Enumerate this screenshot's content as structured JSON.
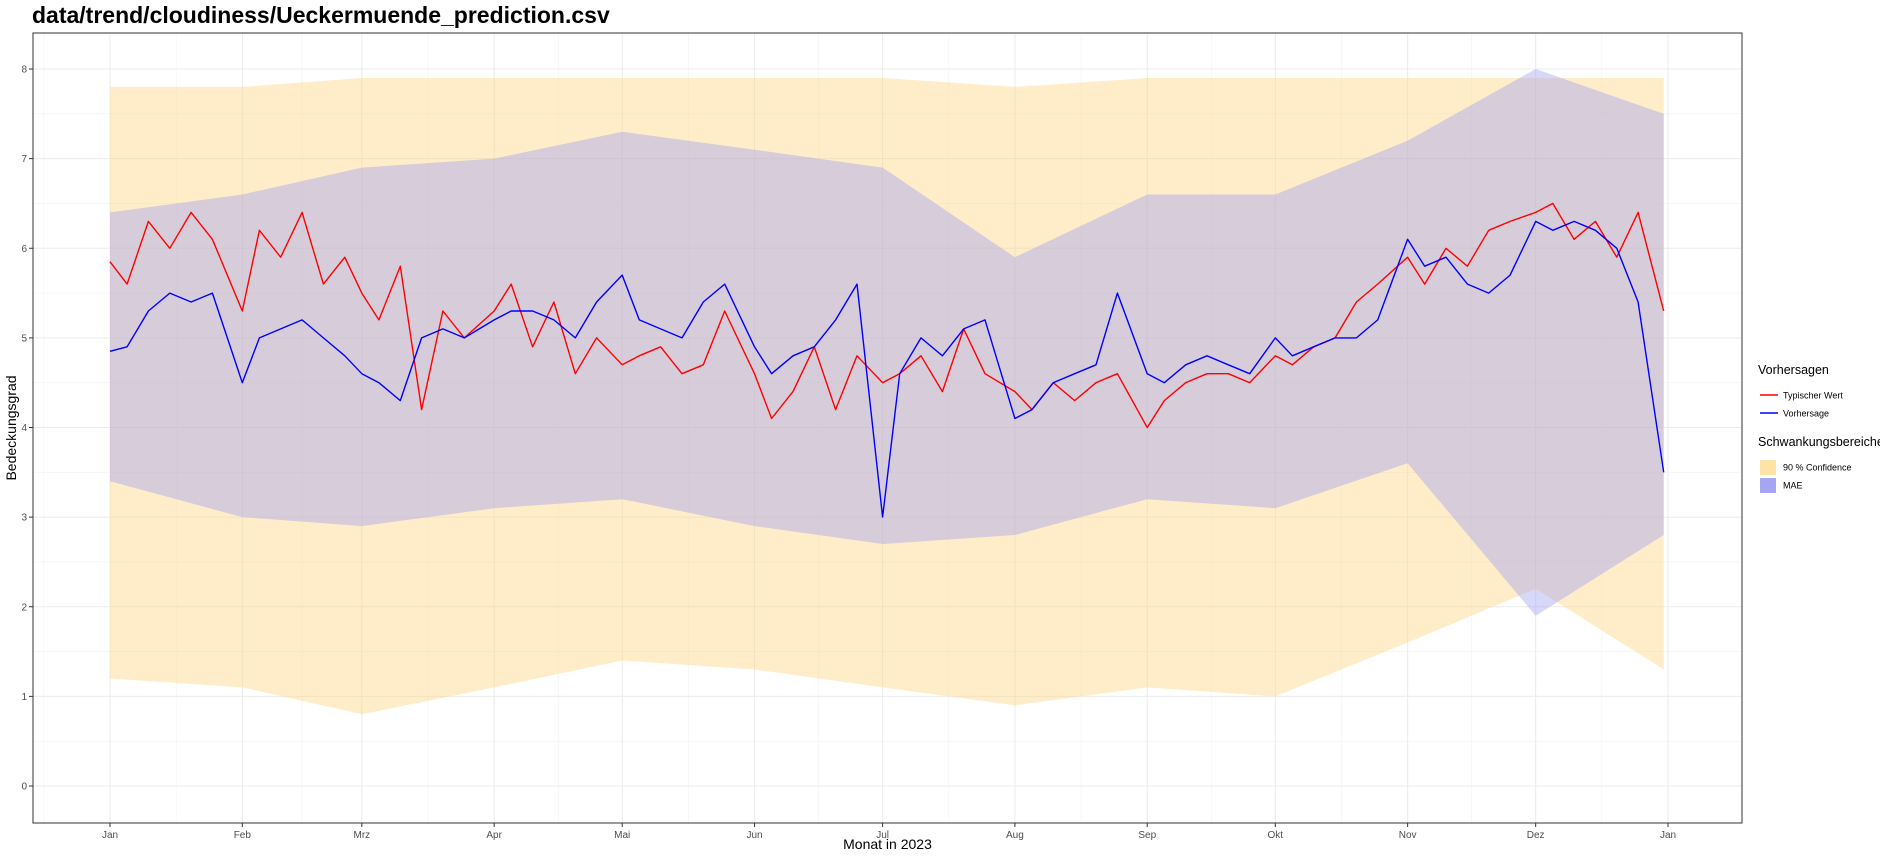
{
  "title": "data/trend/cloudiness/Ueckermuende_prediction.csv",
  "chart_data": {
    "type": "line",
    "xlabel": "Monat in 2023",
    "ylabel": "Bedeckungsgrad",
    "ylim": [
      -0.35,
      8.4
    ],
    "yticks": [
      0,
      1,
      2,
      3,
      4,
      5,
      6,
      7,
      8
    ],
    "xticks": [
      {
        "label": "Jan",
        "day": 0
      },
      {
        "label": "Feb",
        "day": 31
      },
      {
        "label": "Mrz",
        "day": 59
      },
      {
        "label": "Apr",
        "day": 90
      },
      {
        "label": "Mai",
        "day": 120
      },
      {
        "label": "Jun",
        "day": 151
      },
      {
        "label": "Jul",
        "day": 181
      },
      {
        "label": "Aug",
        "day": 212
      },
      {
        "label": "Sep",
        "day": 243
      },
      {
        "label": "Okt",
        "day": 273
      },
      {
        "label": "Nov",
        "day": 304
      },
      {
        "label": "Dez",
        "day": 334
      },
      {
        "label": "Jan",
        "day": 365
      }
    ],
    "grid": true,
    "legend_position": "right",
    "series": [
      {
        "name": "Typischer Wert",
        "color": "#ff0000",
        "kind": "line",
        "x": [
          "2023-01-01",
          "2023-01-05",
          "2023-01-10",
          "2023-01-15",
          "2023-01-20",
          "2023-01-25",
          "2023-02-01",
          "2023-02-05",
          "2023-02-10",
          "2023-02-15",
          "2023-02-20",
          "2023-02-25",
          "2023-03-01",
          "2023-03-05",
          "2023-03-10",
          "2023-03-15",
          "2023-03-20",
          "2023-03-25",
          "2023-04-01",
          "2023-04-05",
          "2023-04-10",
          "2023-04-15",
          "2023-04-20",
          "2023-04-25",
          "2023-05-01",
          "2023-05-05",
          "2023-05-10",
          "2023-05-15",
          "2023-05-20",
          "2023-05-25",
          "2023-06-01",
          "2023-06-05",
          "2023-06-10",
          "2023-06-15",
          "2023-06-20",
          "2023-06-25",
          "2023-07-01",
          "2023-07-05",
          "2023-07-10",
          "2023-07-15",
          "2023-07-20",
          "2023-07-25",
          "2023-08-01",
          "2023-08-05",
          "2023-08-10",
          "2023-08-15",
          "2023-08-20",
          "2023-08-25",
          "2023-09-01",
          "2023-09-05",
          "2023-09-10",
          "2023-09-15",
          "2023-09-20",
          "2023-09-25",
          "2023-10-01",
          "2023-10-05",
          "2023-10-10",
          "2023-10-15",
          "2023-10-20",
          "2023-10-25",
          "2023-11-01",
          "2023-11-05",
          "2023-11-10",
          "2023-11-15",
          "2023-11-20",
          "2023-11-25",
          "2023-12-01",
          "2023-12-05",
          "2023-12-10",
          "2023-12-15",
          "2023-12-20",
          "2023-12-25",
          "2023-12-31"
        ],
        "y": [
          5.85,
          5.6,
          6.3,
          6.0,
          6.4,
          6.1,
          5.3,
          6.2,
          5.9,
          6.4,
          5.6,
          5.9,
          5.5,
          5.2,
          5.8,
          4.2,
          5.3,
          5.0,
          5.3,
          5.6,
          4.9,
          5.4,
          4.6,
          5.0,
          4.7,
          4.8,
          4.9,
          4.6,
          4.7,
          5.3,
          4.6,
          4.1,
          4.4,
          4.9,
          4.2,
          4.8,
          4.5,
          4.6,
          4.8,
          4.4,
          5.1,
          4.6,
          4.4,
          4.2,
          4.5,
          4.3,
          4.5,
          4.6,
          4.0,
          4.3,
          4.5,
          4.6,
          4.6,
          4.5,
          4.8,
          4.7,
          4.9,
          5.0,
          5.4,
          5.6,
          5.9,
          5.6,
          6.0,
          5.8,
          6.2,
          6.3,
          6.4,
          6.5,
          6.1,
          6.3,
          5.9,
          6.4,
          5.3
        ]
      },
      {
        "name": "Vorhersage",
        "color": "#0000ff",
        "kind": "line",
        "x": [
          "2023-01-01",
          "2023-01-05",
          "2023-01-10",
          "2023-01-15",
          "2023-01-20",
          "2023-01-25",
          "2023-02-01",
          "2023-02-05",
          "2023-02-10",
          "2023-02-15",
          "2023-02-20",
          "2023-02-25",
          "2023-03-01",
          "2023-03-05",
          "2023-03-10",
          "2023-03-15",
          "2023-03-20",
          "2023-03-25",
          "2023-04-01",
          "2023-04-05",
          "2023-04-10",
          "2023-04-15",
          "2023-04-20",
          "2023-04-25",
          "2023-05-01",
          "2023-05-05",
          "2023-05-10",
          "2023-05-15",
          "2023-05-20",
          "2023-05-25",
          "2023-06-01",
          "2023-06-05",
          "2023-06-10",
          "2023-06-15",
          "2023-06-20",
          "2023-06-25",
          "2023-07-01",
          "2023-07-05",
          "2023-07-10",
          "2023-07-15",
          "2023-07-20",
          "2023-07-25",
          "2023-08-01",
          "2023-08-05",
          "2023-08-10",
          "2023-08-15",
          "2023-08-20",
          "2023-08-25",
          "2023-09-01",
          "2023-09-05",
          "2023-09-10",
          "2023-09-15",
          "2023-09-20",
          "2023-09-25",
          "2023-10-01",
          "2023-10-05",
          "2023-10-10",
          "2023-10-15",
          "2023-10-20",
          "2023-10-25",
          "2023-11-01",
          "2023-11-05",
          "2023-11-10",
          "2023-11-15",
          "2023-11-20",
          "2023-11-25",
          "2023-12-01",
          "2023-12-05",
          "2023-12-10",
          "2023-12-15",
          "2023-12-20",
          "2023-12-25",
          "2023-12-31"
        ],
        "y": [
          4.85,
          4.9,
          5.3,
          5.5,
          5.4,
          5.5,
          4.5,
          5.0,
          5.1,
          5.2,
          5.0,
          4.8,
          4.6,
          4.5,
          4.3,
          5.0,
          5.1,
          5.0,
          5.2,
          5.3,
          5.3,
          5.2,
          5.0,
          5.4,
          5.7,
          5.2,
          5.1,
          5.0,
          5.4,
          5.6,
          4.9,
          4.6,
          4.8,
          4.9,
          5.2,
          5.6,
          3.0,
          4.6,
          5.0,
          4.8,
          5.1,
          5.2,
          4.1,
          4.2,
          4.5,
          4.6,
          4.7,
          5.5,
          4.6,
          4.5,
          4.7,
          4.8,
          4.7,
          4.6,
          5.0,
          4.8,
          4.9,
          5.0,
          5.0,
          5.2,
          6.1,
          5.8,
          5.9,
          5.6,
          5.5,
          5.7,
          6.3,
          6.2,
          6.3,
          6.2,
          6.0,
          5.4,
          3.5
        ]
      },
      {
        "name": "90% Confidence",
        "color": "#ffd580",
        "kind": "band",
        "x": [
          "2023-01-01",
          "2023-02-01",
          "2023-03-01",
          "2023-04-01",
          "2023-05-01",
          "2023-06-01",
          "2023-07-01",
          "2023-08-01",
          "2023-09-01",
          "2023-10-01",
          "2023-11-01",
          "2023-12-01",
          "2023-12-31"
        ],
        "lower": [
          1.2,
          1.1,
          0.8,
          1.1,
          1.4,
          1.3,
          1.1,
          0.9,
          1.1,
          1.0,
          1.6,
          2.2,
          1.3
        ],
        "upper": [
          7.8,
          7.8,
          7.9,
          7.9,
          7.9,
          7.9,
          7.9,
          7.8,
          7.9,
          7.9,
          7.9,
          7.9,
          7.9
        ]
      },
      {
        "name": "MAE",
        "color": "#a0a0f0",
        "kind": "band",
        "x": [
          "2023-01-01",
          "2023-02-01",
          "2023-03-01",
          "2023-04-01",
          "2023-05-01",
          "2023-06-01",
          "2023-07-01",
          "2023-08-01",
          "2023-09-01",
          "2023-10-01",
          "2023-11-01",
          "2023-12-01",
          "2023-12-31"
        ],
        "lower": [
          3.4,
          3.0,
          2.9,
          3.1,
          3.2,
          2.9,
          2.7,
          2.8,
          3.2,
          3.1,
          3.6,
          1.9,
          2.8
        ],
        "upper": [
          6.4,
          6.6,
          6.9,
          7.0,
          7.3,
          7.1,
          6.9,
          5.9,
          6.6,
          6.6,
          7.2,
          8.0,
          7.5
        ]
      }
    ],
    "legend": {
      "sections": [
        {
          "title": "Vorhersagen",
          "items": [
            {
              "label": "Typischer Wert",
              "color": "#ff0000",
              "kind": "line"
            },
            {
              "label": "Vorhersage",
              "color": "#0000ff",
              "kind": "line"
            }
          ]
        },
        {
          "title": "Schwankungsbereiche",
          "items": [
            {
              "label": "90 % Confidence",
              "color": "#ffd580",
              "kind": "fill"
            },
            {
              "label": "MAE",
              "color": "#a0a0f0",
              "kind": "fill"
            }
          ]
        }
      ]
    }
  }
}
